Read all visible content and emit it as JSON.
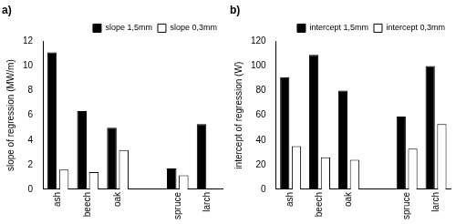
{
  "chart_data": [
    {
      "type": "bar",
      "title": "a)",
      "categories": [
        "ash",
        "beech",
        "oak",
        null,
        "spruce",
        "larch"
      ],
      "y_label": "slope of regression (MW/m)",
      "series": [
        {
          "name": "slope 1,5mm",
          "color": "#000000",
          "values": [
            11.1,
            6.35,
            5.0,
            null,
            1.7,
            5.3
          ]
        },
        {
          "name": "slope 0,3mm",
          "color": "#ffffff",
          "values": [
            1.6,
            1.4,
            3.2,
            null,
            1.15,
            null
          ]
        }
      ],
      "ylim": [
        0,
        12
      ],
      "yticks": [
        0,
        2,
        4,
        6,
        8,
        10,
        12
      ],
      "legend": "upper right",
      "grid": false
    },
    {
      "type": "bar",
      "title": "b)",
      "categories": [
        "ash",
        "beech",
        "oak",
        null,
        "spruce",
        "larch"
      ],
      "y_label": "intercept of regression (W)",
      "series": [
        {
          "name": "intercept 1,5mm",
          "color": "#000000",
          "values": [
            91,
            109,
            80,
            null,
            59,
            100
          ]
        },
        {
          "name": "intercept 0,3mm",
          "color": "#ffffff",
          "values": [
            35,
            26,
            24,
            null,
            33,
            53
          ]
        }
      ],
      "ylim": [
        0,
        120
      ],
      "yticks": [
        0,
        20,
        40,
        60,
        80,
        100,
        120
      ],
      "legend": "upper right",
      "grid": false
    }
  ]
}
